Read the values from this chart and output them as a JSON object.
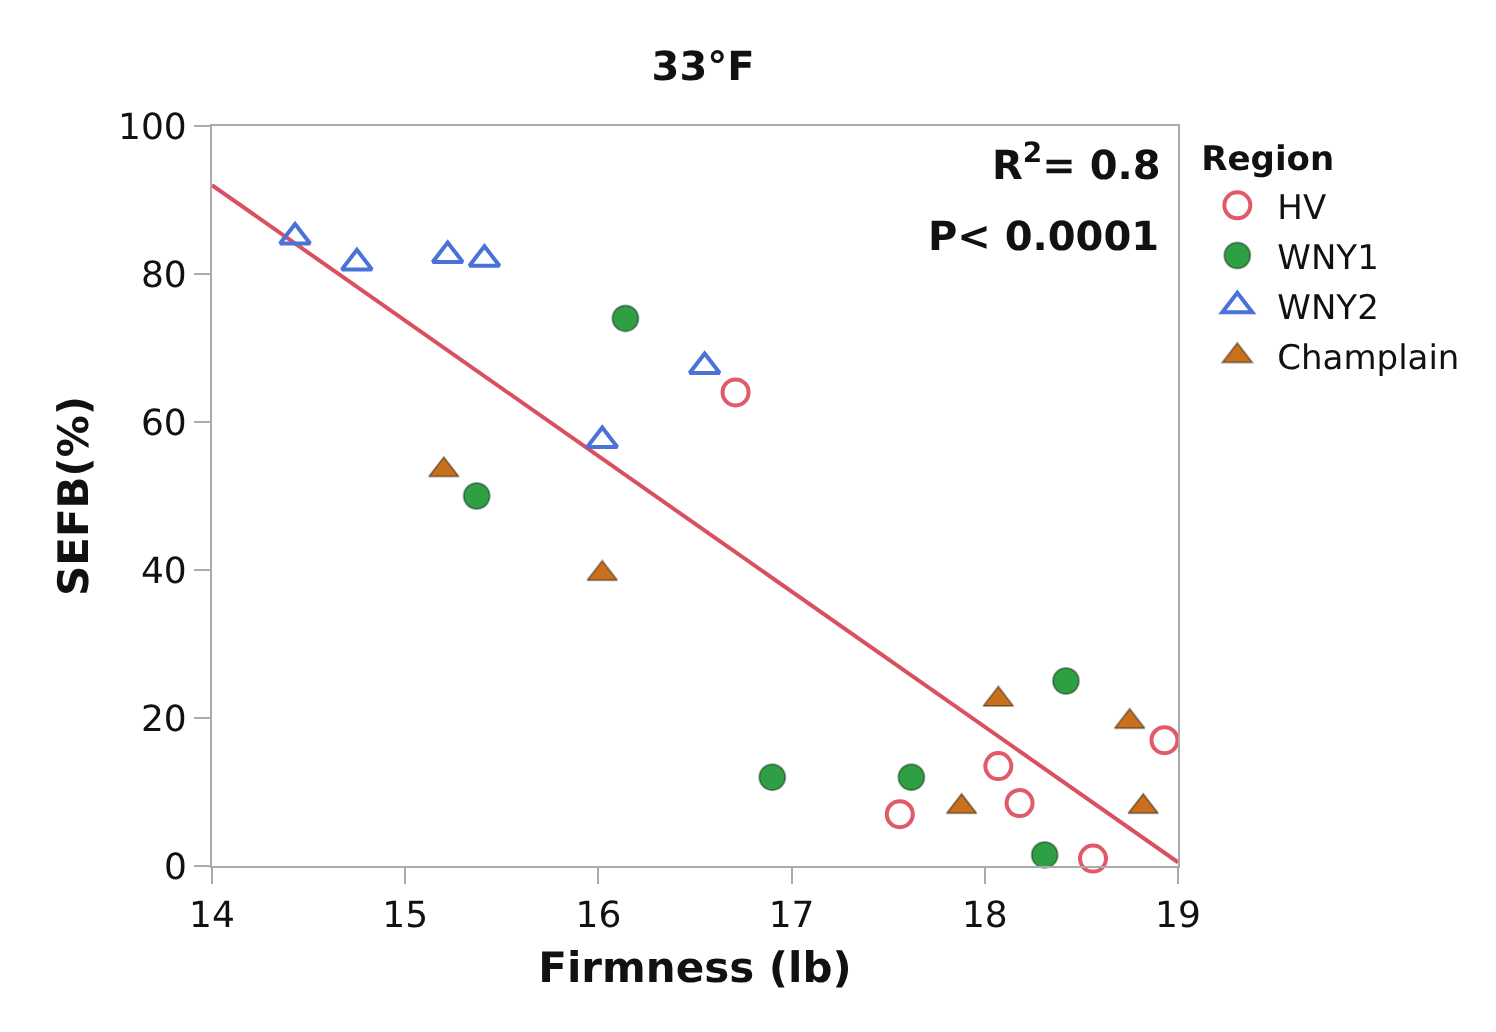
{
  "chart_data": {
    "type": "scatter",
    "title": "33°F",
    "xlabel": "Firmness (lb)",
    "ylabel": "SEFB(%)",
    "legend_title": "Region",
    "legend": "top right",
    "grid": false,
    "xlim": [
      14,
      19
    ],
    "xticks": [
      14,
      15,
      16,
      17,
      18,
      19
    ],
    "ylim": [
      0,
      100
    ],
    "yticks": [
      0,
      20,
      40,
      60,
      80,
      100
    ],
    "annotations": [
      "R$^{2}$= 0.8",
      "P< 0.0001"
    ],
    "series": [
      {
        "name": "HV",
        "color": "#e05a6a",
        "marker": "circle-open",
        "x": [
          16.71,
          17.56,
          18.07,
          18.18,
          18.56,
          18.93
        ],
        "values": [
          64,
          7,
          13.5,
          8.5,
          1,
          17
        ]
      },
      {
        "name": "WNY1",
        "color": "#2ea043",
        "marker": "circle",
        "x": [
          16.14,
          15.37,
          16.9,
          17.62,
          18.42,
          18.31
        ],
        "values": [
          74,
          50,
          12,
          12,
          25,
          1.5
        ]
      },
      {
        "name": "WNY2",
        "color": "#4a72d8",
        "marker": "triangle-open",
        "x": [
          14.43,
          14.75,
          15.22,
          15.41,
          16.55,
          16.02
        ],
        "values": [
          85,
          81.5,
          82.5,
          82,
          67.5,
          57.5
        ]
      },
      {
        "name": "Champlain",
        "color": "#c8701e",
        "marker": "triangle",
        "x": [
          15.2,
          16.02,
          17.88,
          18.07,
          18.75,
          18.82
        ],
        "values": [
          53.5,
          39.5,
          8,
          22.5,
          19.5,
          8
        ]
      },
      {
        "type": "line",
        "color": "#d9505e",
        "marker": "none",
        "x": [
          14,
          19
        ],
        "values": [
          92,
          0.5
        ]
      }
    ]
  }
}
